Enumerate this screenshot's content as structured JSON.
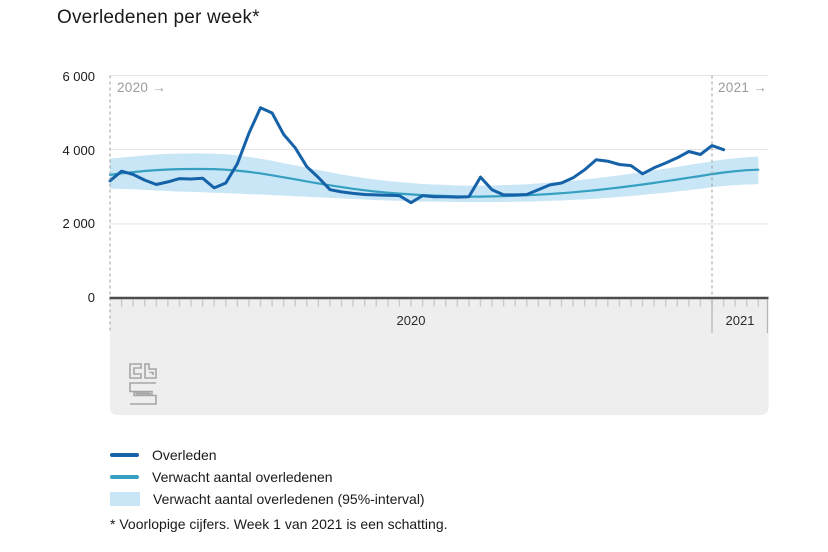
{
  "title": "Overledenen per week*",
  "footnote": "* Voorlopige cijfers. Week 1 van 2021 is een schatting.",
  "plot": {
    "period_left": "2020 →",
    "period_right": "2021 →"
  },
  "yaxis": {
    "labels": [
      "6 000",
      "4 000",
      "2 000",
      "0"
    ]
  },
  "xaxis": {
    "labels": [
      "2020",
      "2021"
    ]
  },
  "legend": [
    {
      "label": "Overleden",
      "type": "line",
      "color": "#1562a8"
    },
    {
      "label": "Verwacht aantal overledenen",
      "type": "line",
      "color": "#35a0c0"
    },
    {
      "label": "Verwacht aantal overledenen (95%-interval)",
      "type": "area",
      "color": "#c9e6f7"
    }
  ],
  "colors": {
    "grid": "#e3e3e3",
    "axis": "#4c4c4c",
    "dashed_line": "#9c9c9c",
    "footer_area": "#eeeeee",
    "tick": "#c9c9c9",
    "separator": "#b3b3b3",
    "logo": "#a6a6a6"
  },
  "chart_data": {
    "type": "line",
    "title": "Overledenen per week*",
    "x_unit": "week",
    "x_note": "Weekly values: weeks 1-53 of 2020 followed by week 1 of 2021 for 'Overleden'; expected series and 95%-interval extend a few weeks into 2021. Values estimated from pixel positions.",
    "ylim": [
      0,
      6000
    ],
    "yticks": [
      0,
      2000,
      4000,
      6000
    ],
    "grid": true,
    "legend_position": "bottom-left",
    "series": [
      {
        "name": "Overleden",
        "color": "#1562a8",
        "values": [
          3160,
          3420,
          3330,
          3180,
          3060,
          3130,
          3220,
          3210,
          3230,
          2970,
          3100,
          3620,
          4440,
          5130,
          4990,
          4410,
          4050,
          3540,
          3250,
          2920,
          2860,
          2820,
          2790,
          2780,
          2770,
          2760,
          2570,
          2760,
          2730,
          2730,
          2720,
          2730,
          3260,
          2920,
          2780,
          2780,
          2790,
          2920,
          3050,
          3100,
          3240,
          3460,
          3730,
          3690,
          3600,
          3570,
          3350,
          3510,
          3640,
          3780,
          3950,
          3870,
          4110,
          4000
        ]
      },
      {
        "name": "Verwacht aantal overledenen",
        "color": "#35a0c0",
        "values": [
          3320,
          3360,
          3395,
          3425,
          3450,
          3465,
          3475,
          3480,
          3480,
          3475,
          3460,
          3435,
          3400,
          3360,
          3310,
          3255,
          3200,
          3145,
          3090,
          3040,
          2990,
          2945,
          2905,
          2870,
          2840,
          2815,
          2795,
          2775,
          2760,
          2750,
          2740,
          2735,
          2735,
          2740,
          2745,
          2755,
          2770,
          2785,
          2805,
          2825,
          2850,
          2880,
          2910,
          2945,
          2980,
          3020,
          3060,
          3105,
          3150,
          3195,
          3245,
          3290,
          3340,
          3385,
          3420,
          3445,
          3460
        ]
      }
    ],
    "interval": {
      "name": "Verwacht aantal overledenen (95%-interval)",
      "color": "#c9e6f7",
      "upper": [
        3760,
        3790,
        3815,
        3845,
        3870,
        3885,
        3895,
        3900,
        3900,
        3890,
        3875,
        3845,
        3805,
        3755,
        3700,
        3635,
        3575,
        3510,
        3450,
        3390,
        3330,
        3280,
        3235,
        3190,
        3155,
        3125,
        3100,
        3075,
        3060,
        3050,
        3035,
        3030,
        3030,
        3035,
        3045,
        3055,
        3070,
        3090,
        3115,
        3135,
        3165,
        3195,
        3230,
        3270,
        3305,
        3350,
        3390,
        3440,
        3490,
        3535,
        3590,
        3635,
        3690,
        3735,
        3770,
        3795,
        3815
      ],
      "lower": [
        2950,
        2940,
        2930,
        2915,
        2900,
        2885,
        2870,
        2860,
        2850,
        2840,
        2830,
        2815,
        2800,
        2790,
        2775,
        2760,
        2745,
        2730,
        2715,
        2700,
        2685,
        2670,
        2655,
        2640,
        2630,
        2620,
        2610,
        2600,
        2600,
        2595,
        2590,
        2585,
        2585,
        2585,
        2590,
        2595,
        2600,
        2610,
        2620,
        2630,
        2645,
        2660,
        2680,
        2700,
        2725,
        2750,
        2780,
        2810,
        2840,
        2875,
        2910,
        2945,
        2985,
        3020,
        3045,
        3060,
        3070
      ]
    }
  }
}
